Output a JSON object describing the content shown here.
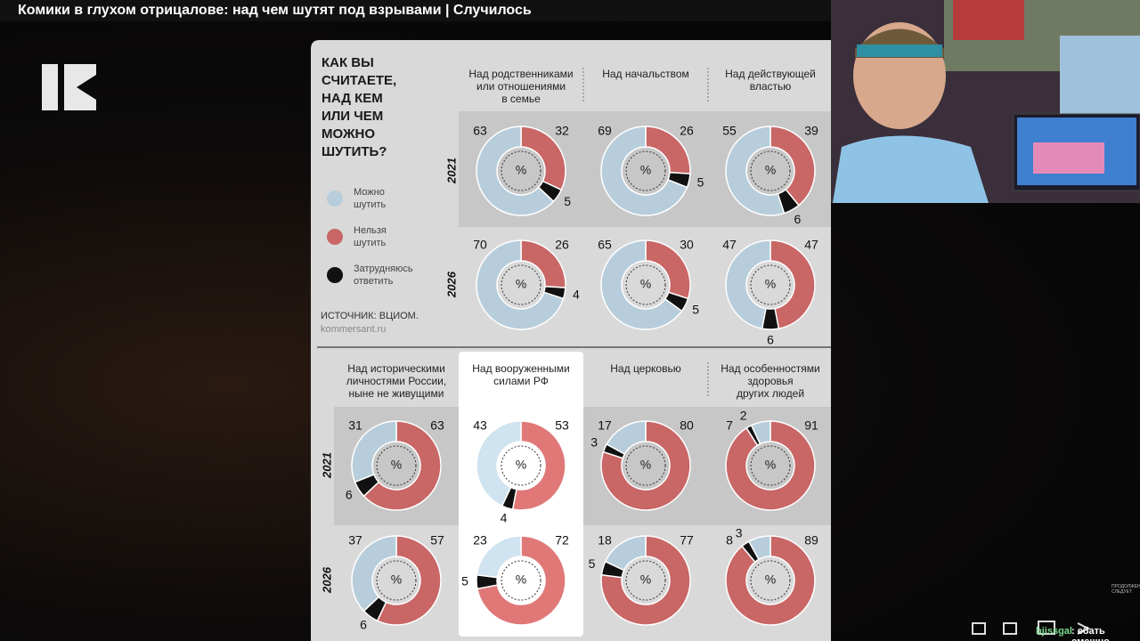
{
  "video_title": "Комики в глухом отрицалове: над чем шутят под взрывами | Случилось",
  "infographic": {
    "title": "КАК ВЫ\nСЧИТАЕТЕ,\nНАД КЕМ\nИЛИ ЧЕМ\nМОЖНО\nШУТИТЬ?",
    "legend": [
      {
        "name": "Можно\nшутить",
        "color": "#b7cddb"
      },
      {
        "name": "Нельзя\nшутить",
        "color": "#c96666"
      },
      {
        "name": "Затрудняюсь\nответить",
        "color": "#111111"
      }
    ],
    "source": "ИСТОЧНИК: ВЦИОМ.",
    "site": "kommersant.ru",
    "sections": [
      {
        "years": [
          "2021",
          "2026"
        ],
        "columns": [
          {
            "header": "Над родственниками\nили отношениями\nв семье"
          },
          {
            "header": "Над начальством"
          },
          {
            "header": "Над действующей\nвластью"
          }
        ]
      },
      {
        "years": [
          "2021",
          "2026"
        ],
        "columns": [
          {
            "header": "Над историческими\nличностями России,\nныне не живущими"
          },
          {
            "header": "Над вооруженными\nсилами РФ",
            "highlighted": true
          },
          {
            "header": "Над церковью"
          },
          {
            "header": "Над особенностями\nздоровья\nдругих людей"
          }
        ]
      }
    ]
  },
  "chart_data": [
    {
      "type": "pie",
      "values": [
        63,
        32,
        5
      ],
      "center_label": "%"
    },
    {
      "type": "pie",
      "values": [
        70,
        26,
        4
      ],
      "center_label": "%"
    },
    {
      "type": "pie",
      "values": [
        69,
        26,
        5
      ],
      "center_label": "%"
    },
    {
      "type": "pie",
      "values": [
        65,
        30,
        5
      ],
      "center_label": "%"
    },
    {
      "type": "pie",
      "values": [
        55,
        39,
        6
      ],
      "center_label": "%"
    },
    {
      "type": "pie",
      "values": [
        47,
        47,
        6
      ],
      "center_label": "%"
    },
    {
      "type": "pie",
      "values": [
        31,
        63,
        6
      ],
      "center_label": "%"
    },
    {
      "type": "pie",
      "values": [
        37,
        57,
        6
      ],
      "center_label": "%"
    },
    {
      "type": "pie",
      "values": [
        43,
        53,
        4
      ],
      "center_label": "%"
    },
    {
      "type": "pie",
      "values": [
        23,
        72,
        5
      ],
      "center_label": "%"
    },
    {
      "type": "pie",
      "values": [
        17,
        80,
        3
      ],
      "center_label": "%"
    },
    {
      "type": "pie",
      "values": [
        18,
        77,
        5
      ],
      "center_label": "%"
    },
    {
      "type": "pie",
      "values": [
        7,
        91,
        2
      ],
      "center_label": "%"
    },
    {
      "type": "pie",
      "values": [
        8,
        89,
        3
      ],
      "center_label": "%"
    }
  ],
  "continues_note": "ПРОДОЛЖЕНИЕ\nСЛЕДУЕТ",
  "chat_user": "bjissgal",
  "chat_message": ": ебать смешно"
}
